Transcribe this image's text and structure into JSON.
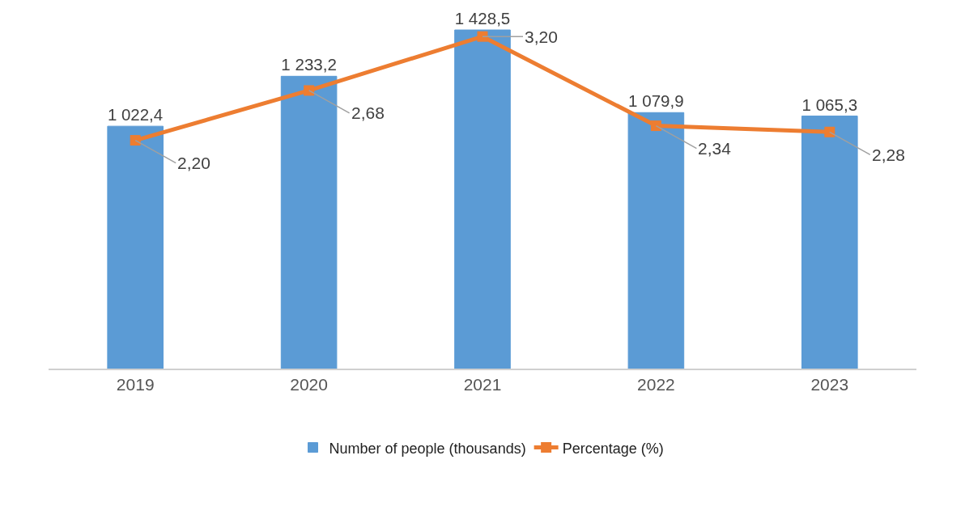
{
  "chart_data": {
    "type": "bar",
    "categories": [
      "2019",
      "2020",
      "2021",
      "2022",
      "2023"
    ],
    "series": [
      {
        "name": "Number of people (thousands)",
        "color": "#5b9bd5",
        "values": [
          1022.4,
          1233.2,
          1428.5,
          1079.9,
          1065.3
        ],
        "value_labels": [
          "1 022,4",
          "1 233,2",
          "1 428,5",
          "1 079,9",
          "1 065,3"
        ]
      },
      {
        "name": "Percentage (%)",
        "type": "line",
        "axis": "y2",
        "color": "#ed7d31",
        "marker": "square",
        "values": [
          2.2,
          2.68,
          3.2,
          2.34,
          2.28
        ],
        "value_labels": [
          "2,20",
          "2,68",
          "3,20",
          "2,34",
          "2,28"
        ]
      }
    ],
    "tick_labels": "x",
    "grid": false,
    "legend": "bottom"
  }
}
